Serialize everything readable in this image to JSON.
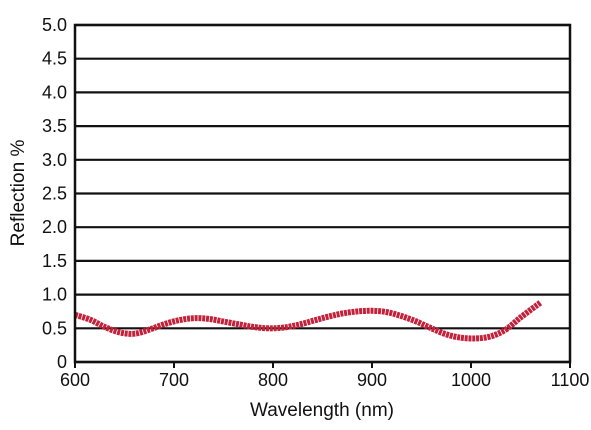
{
  "chart_data": {
    "type": "line",
    "title": "",
    "xlabel": "Wavelength (nm)",
    "ylabel": "Reflection %",
    "xlim": [
      600,
      1100
    ],
    "ylim": [
      0,
      5.0
    ],
    "x_ticks": [
      600,
      700,
      800,
      900,
      1000,
      1100
    ],
    "y_ticks": [
      0,
      0.5,
      1.0,
      1.5,
      2.0,
      2.5,
      3.0,
      3.5,
      4.0,
      4.5,
      5.0
    ],
    "x_tick_labels": [
      "600",
      "700",
      "800",
      "900",
      "1000",
      "1100"
    ],
    "y_tick_labels": [
      "0",
      "0.5",
      "1.0",
      "1.5",
      "2.0",
      "2.5",
      "3.0",
      "3.5",
      "4.0",
      "4.5",
      "5.0"
    ],
    "grid": "horizontal",
    "series": [
      {
        "color": "#c4213a",
        "x": [
          600,
          615,
          630,
          645,
          660,
          675,
          690,
          705,
          720,
          735,
          750,
          765,
          780,
          795,
          810,
          825,
          840,
          855,
          870,
          885,
          900,
          915,
          930,
          945,
          960,
          975,
          990,
          1005,
          1020,
          1035,
          1050,
          1070
        ],
        "y": [
          0.7,
          0.63,
          0.52,
          0.44,
          0.42,
          0.48,
          0.56,
          0.62,
          0.65,
          0.64,
          0.6,
          0.56,
          0.52,
          0.5,
          0.51,
          0.55,
          0.61,
          0.67,
          0.72,
          0.75,
          0.76,
          0.74,
          0.68,
          0.6,
          0.5,
          0.41,
          0.36,
          0.35,
          0.38,
          0.48,
          0.66,
          0.88
        ]
      }
    ]
  }
}
